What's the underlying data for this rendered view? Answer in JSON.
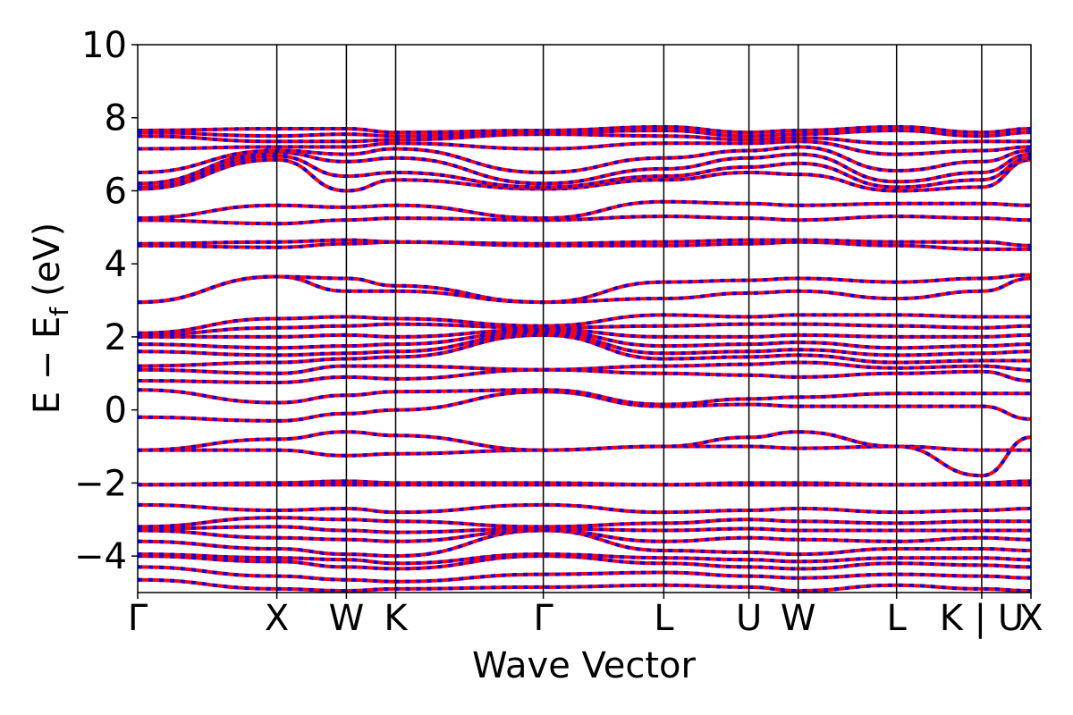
{
  "chart_data": {
    "type": "line",
    "xlabel": "Wave Vector",
    "ylabel": "E − E",
    "ylabel_subscript": "f",
    "ylabel_unit": "(eV)",
    "ylim": [
      -5,
      10
    ],
    "y_ticks": [
      -4,
      -2,
      0,
      2,
      4,
      6,
      8,
      10
    ],
    "y_tick_labels": [
      "−4",
      "−2",
      "0",
      "2",
      "4",
      "6",
      "8",
      "10"
    ],
    "k_path": [
      "Γ",
      "X",
      "W",
      "K",
      "Γ",
      "L",
      "U",
      "W",
      "L",
      "K | U",
      "X"
    ],
    "k_positions": [
      0,
      1.0,
      0.5,
      0.354,
      1.061,
      0.866,
      0.612,
      0.354,
      0.707,
      0.612,
      0.354
    ],
    "series": [
      {
        "color": "#ff0000",
        "style": "solid"
      },
      {
        "color": "#0000ff",
        "style": "dashed"
      }
    ],
    "bands": [
      [
        -4.65,
        -4.9,
        -4.95,
        -4.9,
        -4.85,
        -4.8,
        -4.85,
        -4.95,
        -4.8,
        -4.9,
        -4.95
      ],
      [
        -4.3,
        -4.55,
        -4.65,
        -4.7,
        -4.5,
        -4.45,
        -4.55,
        -4.6,
        -4.5,
        -4.55,
        -4.6
      ],
      [
        -4.0,
        -4.15,
        -4.3,
        -4.35,
        -4.0,
        -4.2,
        -4.3,
        -4.35,
        -4.2,
        -4.25,
        -4.3
      ],
      [
        -3.95,
        -4.05,
        -4.1,
        -4.2,
        -3.95,
        -4.05,
        -4.1,
        -4.15,
        -4.05,
        -4.05,
        -4.1
      ],
      [
        -3.6,
        -3.8,
        -3.95,
        -4.0,
        -3.3,
        -3.85,
        -3.9,
        -3.95,
        -3.8,
        -3.8,
        -3.85
      ],
      [
        -3.3,
        -3.5,
        -3.55,
        -3.6,
        -3.3,
        -3.6,
        -3.5,
        -3.55,
        -3.6,
        -3.5,
        -3.55
      ],
      [
        -3.25,
        -3.2,
        -3.3,
        -3.35,
        -3.25,
        -3.3,
        -3.25,
        -3.3,
        -3.3,
        -3.3,
        -3.3
      ],
      [
        -3.2,
        -2.95,
        -3.0,
        -3.05,
        -3.2,
        -3.1,
        -3.0,
        -3.05,
        -3.1,
        -3.05,
        -3.05
      ],
      [
        -2.6,
        -2.75,
        -2.7,
        -2.8,
        -2.6,
        -2.8,
        -2.75,
        -2.7,
        -2.8,
        -2.75,
        -2.7
      ],
      [
        -2.05,
        -2.0,
        -1.95,
        -2.0,
        -2.0,
        -2.05,
        -2.0,
        -2.0,
        -2.05,
        -2.0,
        -1.95
      ],
      [
        -2.05,
        -2.05,
        -2.05,
        -2.05,
        -2.05,
        -2.05,
        -2.05,
        -2.05,
        -2.05,
        -2.05,
        -2.05
      ],
      [
        -1.1,
        -1.1,
        -1.25,
        -1.2,
        -1.1,
        -1.0,
        -1.0,
        -1.05,
        -1.0,
        -1.1,
        -1.1
      ],
      [
        -1.1,
        -0.8,
        -0.6,
        -0.7,
        -1.1,
        -1.0,
        -0.75,
        -0.6,
        -1.0,
        -1.8,
        -0.75
      ],
      [
        -0.2,
        -0.3,
        -0.1,
        0.0,
        0.5,
        0.1,
        0.15,
        0.1,
        0.1,
        0.1,
        -0.25
      ],
      [
        0.55,
        0.2,
        0.4,
        0.5,
        0.55,
        0.15,
        0.3,
        0.35,
        0.45,
        0.45,
        0.45
      ],
      [
        0.8,
        0.75,
        0.9,
        0.85,
        1.1,
        1.0,
        0.95,
        0.9,
        1.0,
        1.05,
        0.8
      ],
      [
        1.1,
        1.0,
        1.2,
        1.2,
        1.1,
        1.2,
        1.25,
        1.3,
        1.15,
        1.2,
        1.1
      ],
      [
        1.2,
        1.3,
        1.4,
        1.45,
        2.05,
        1.4,
        1.45,
        1.5,
        1.3,
        1.35,
        1.35
      ],
      [
        1.6,
        1.5,
        1.55,
        1.6,
        2.1,
        1.55,
        1.6,
        1.65,
        1.5,
        1.55,
        1.6
      ],
      [
        1.8,
        1.7,
        1.75,
        1.8,
        2.15,
        1.75,
        1.8,
        1.85,
        1.7,
        1.75,
        1.8
      ],
      [
        2.0,
        2.0,
        2.05,
        2.0,
        2.2,
        2.0,
        2.0,
        2.05,
        2.0,
        2.0,
        2.05
      ],
      [
        2.05,
        2.25,
        2.3,
        2.35,
        2.25,
        2.3,
        2.35,
        2.35,
        2.3,
        2.25,
        2.3
      ],
      [
        2.1,
        2.5,
        2.55,
        2.5,
        2.3,
        2.6,
        2.55,
        2.6,
        2.6,
        2.55,
        2.55
      ],
      [
        2.95,
        3.65,
        3.25,
        3.25,
        2.95,
        3.05,
        3.2,
        3.25,
        3.05,
        3.25,
        3.6
      ],
      [
        2.95,
        3.65,
        3.6,
        3.4,
        2.95,
        3.5,
        3.55,
        3.6,
        3.5,
        3.6,
        3.7
      ],
      [
        4.5,
        4.45,
        4.55,
        4.6,
        4.5,
        4.5,
        4.55,
        4.6,
        4.5,
        4.4,
        4.4
      ],
      [
        4.55,
        4.6,
        4.65,
        4.6,
        4.55,
        4.6,
        4.65,
        4.65,
        4.6,
        4.6,
        4.5
      ],
      [
        5.2,
        5.1,
        5.2,
        5.25,
        5.2,
        5.3,
        5.25,
        5.2,
        5.3,
        5.25,
        5.2
      ],
      [
        5.25,
        5.6,
        5.55,
        5.6,
        5.25,
        5.7,
        5.65,
        5.6,
        5.65,
        5.65,
        5.6
      ],
      [
        6.05,
        6.85,
        6.0,
        6.3,
        6.05,
        6.3,
        6.5,
        6.45,
        6.0,
        6.1,
        6.85
      ],
      [
        6.1,
        6.95,
        6.4,
        6.5,
        6.1,
        6.4,
        6.65,
        6.75,
        6.1,
        6.3,
        6.9
      ],
      [
        6.2,
        7.05,
        6.8,
        6.9,
        6.2,
        6.6,
        6.9,
        7.0,
        6.25,
        6.5,
        7.0
      ],
      [
        6.5,
        7.1,
        7.0,
        7.15,
        6.5,
        6.9,
        7.1,
        7.2,
        6.55,
        6.8,
        7.1
      ],
      [
        7.15,
        7.2,
        7.2,
        7.3,
        7.15,
        7.3,
        7.3,
        7.35,
        7.0,
        7.1,
        7.2
      ],
      [
        7.5,
        7.35,
        7.35,
        7.4,
        7.55,
        7.5,
        7.4,
        7.45,
        7.3,
        7.35,
        7.35
      ],
      [
        7.6,
        7.5,
        7.55,
        7.5,
        7.6,
        7.65,
        7.5,
        7.55,
        7.65,
        7.5,
        7.6
      ],
      [
        7.65,
        7.7,
        7.7,
        7.6,
        7.65,
        7.75,
        7.6,
        7.65,
        7.75,
        7.6,
        7.7
      ]
    ]
  }
}
